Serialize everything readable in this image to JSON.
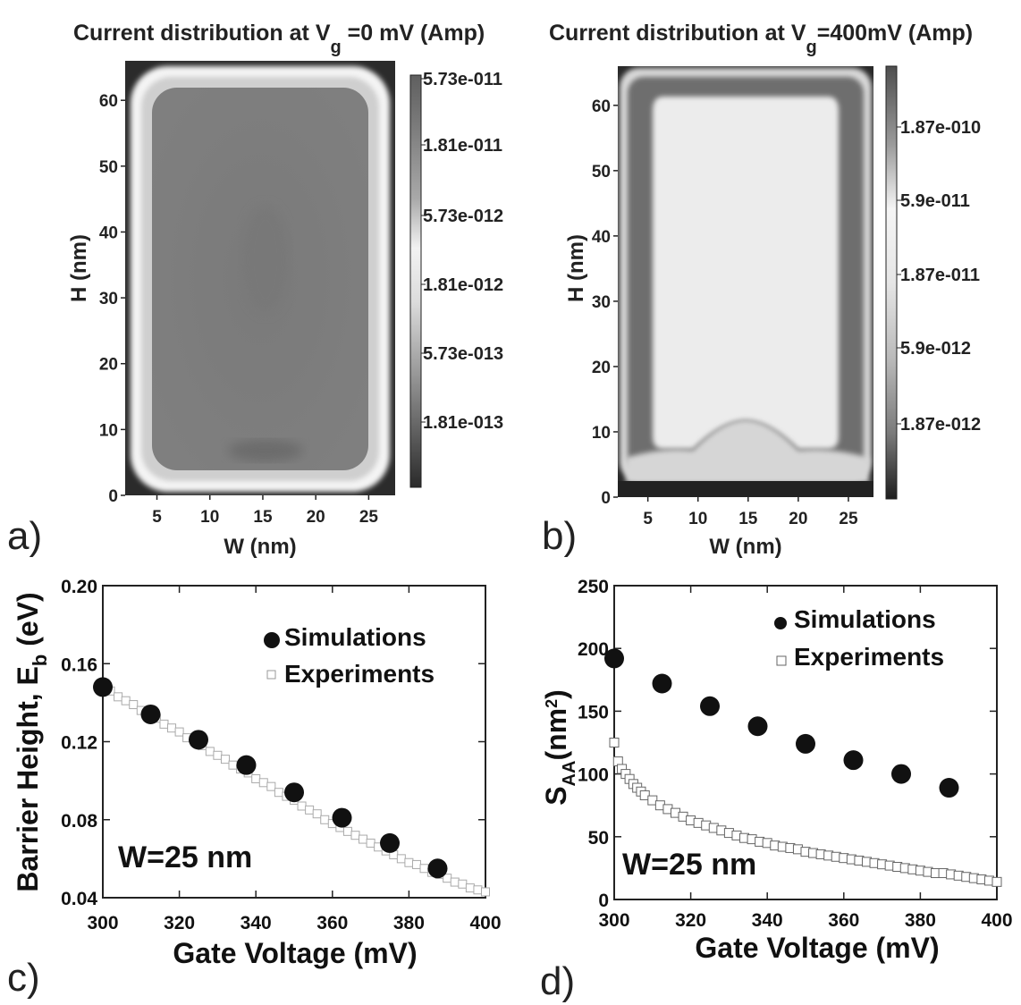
{
  "chart_data": [
    {
      "panel": "a)",
      "type": "heatmap",
      "title": "Current distribution at V_g =0 mV (Amp)",
      "title_parts": [
        "Current distribution at V",
        "g",
        " =0 mV (Amp)"
      ],
      "xlabel": "W (nm)",
      "ylabel": "H (nm)",
      "xlim": [
        2,
        27.5
      ],
      "ylim": [
        0,
        66
      ],
      "xticks": [
        5,
        10,
        15,
        20,
        25
      ],
      "yticks": [
        0,
        10,
        20,
        30,
        40,
        50,
        60
      ],
      "colorbar_labels": [
        "5.73e-011",
        "1.81e-011",
        "5.73e-012",
        "1.81e-012",
        "5.73e-013",
        "1.81e-013"
      ],
      "description_values": {
        "edge_current": "high",
        "core_current": "low"
      }
    },
    {
      "panel": "b)",
      "type": "heatmap",
      "title": "Current distribution at V_g=400mV (Amp)",
      "title_parts": [
        "Current distribution at V",
        "g",
        "=400mV (Amp)"
      ],
      "xlabel": "W (nm)",
      "ylabel": "H (nm)",
      "xlim": [
        2,
        27.5
      ],
      "ylim": [
        0,
        66
      ],
      "xticks": [
        5,
        10,
        15,
        20,
        25
      ],
      "yticks": [
        0,
        10,
        20,
        30,
        40,
        50,
        60
      ],
      "colorbar_labels": [
        "1.87e-010",
        "5.9e-011",
        "1.87e-011",
        "5.9e-012",
        "1.87e-012"
      ]
    },
    {
      "panel": "c)",
      "type": "scatter",
      "xlabel": "Gate Voltage (mV)",
      "ylabel_parts": [
        "Barrier Height, E",
        "b",
        " (eV)"
      ],
      "xlim": [
        300,
        400
      ],
      "ylim": [
        0.04,
        0.2
      ],
      "xticks": [
        300,
        320,
        340,
        360,
        380,
        400
      ],
      "yticks": [
        0.04,
        0.08,
        0.12,
        0.16,
        0.2
      ],
      "ytick_labels": [
        "0.04",
        "0.08",
        "0.12",
        "0.16",
        "0.20"
      ],
      "annotation": "W=25 nm",
      "legend": [
        "Simulations",
        "Experiments"
      ],
      "series": [
        {
          "name": "Simulations",
          "marker": "filled-circle",
          "x": [
            300,
            312.5,
            325,
            337.5,
            350,
            362.5,
            375,
            387.5
          ],
          "y": [
            0.148,
            0.134,
            0.121,
            0.108,
            0.094,
            0.081,
            0.068,
            0.055
          ]
        },
        {
          "name": "Experiments",
          "marker": "open-square",
          "x": [
            300,
            302,
            304,
            306,
            308,
            310,
            312,
            314,
            316,
            318,
            320,
            322,
            324,
            326,
            328,
            330,
            332,
            334,
            336,
            338,
            340,
            342,
            344,
            346,
            348,
            350,
            352,
            354,
            356,
            358,
            360,
            362,
            364,
            366,
            368,
            370,
            372,
            374,
            376,
            378,
            380,
            382,
            384,
            386,
            388,
            390,
            392,
            394,
            396,
            398,
            400
          ],
          "y": [
            0.148,
            0.146,
            0.143,
            0.141,
            0.139,
            0.136,
            0.134,
            0.132,
            0.129,
            0.127,
            0.125,
            0.122,
            0.12,
            0.118,
            0.115,
            0.113,
            0.111,
            0.108,
            0.106,
            0.104,
            0.101,
            0.099,
            0.097,
            0.094,
            0.092,
            0.09,
            0.087,
            0.085,
            0.083,
            0.08,
            0.078,
            0.076,
            0.074,
            0.072,
            0.07,
            0.068,
            0.066,
            0.064,
            0.062,
            0.06,
            0.058,
            0.057,
            0.055,
            0.053,
            0.052,
            0.05,
            0.048,
            0.047,
            0.045,
            0.044,
            0.043
          ]
        }
      ]
    },
    {
      "panel": "d)",
      "type": "scatter",
      "xlabel": "Gate Voltage (mV)",
      "ylabel_parts": [
        "S",
        "AA",
        "(nm",
        "2",
        ")"
      ],
      "xlim": [
        300,
        400
      ],
      "ylim": [
        0,
        250
      ],
      "xticks": [
        300,
        320,
        340,
        360,
        380,
        400
      ],
      "yticks": [
        0,
        50,
        100,
        150,
        200,
        250
      ],
      "annotation": "W=25 nm",
      "legend": [
        "Simulations",
        "Experiments"
      ],
      "series": [
        {
          "name": "Simulations",
          "marker": "filled-circle",
          "x": [
            300,
            312.5,
            325,
            337.5,
            350,
            362.5,
            375,
            387.5
          ],
          "y": [
            192,
            172,
            154,
            138,
            124,
            111,
            100,
            89
          ]
        },
        {
          "name": "Experiments",
          "marker": "open-square",
          "x": [
            300,
            301,
            302,
            303,
            304,
            305,
            306,
            307,
            308,
            310,
            312,
            314,
            316,
            318,
            320,
            322,
            324,
            326,
            328,
            330,
            332,
            334,
            336,
            338,
            340,
            342,
            344,
            346,
            348,
            350,
            352,
            354,
            356,
            358,
            360,
            362,
            364,
            366,
            368,
            370,
            372,
            374,
            376,
            378,
            380,
            382,
            384,
            386,
            388,
            390,
            392,
            394,
            396,
            398,
            400
          ],
          "y": [
            125,
            110,
            104,
            100,
            96,
            92,
            89,
            86,
            83,
            79,
            75,
            72,
            69,
            66,
            63,
            61,
            59,
            57,
            55,
            53,
            51,
            49,
            48,
            46,
            45,
            43,
            42,
            41,
            40,
            38,
            37,
            36,
            35,
            34,
            33,
            32,
            31,
            30,
            29,
            28,
            27,
            26,
            25,
            24,
            23,
            22,
            21,
            21,
            20,
            19,
            18,
            17,
            16,
            15,
            14
          ]
        }
      ]
    }
  ]
}
